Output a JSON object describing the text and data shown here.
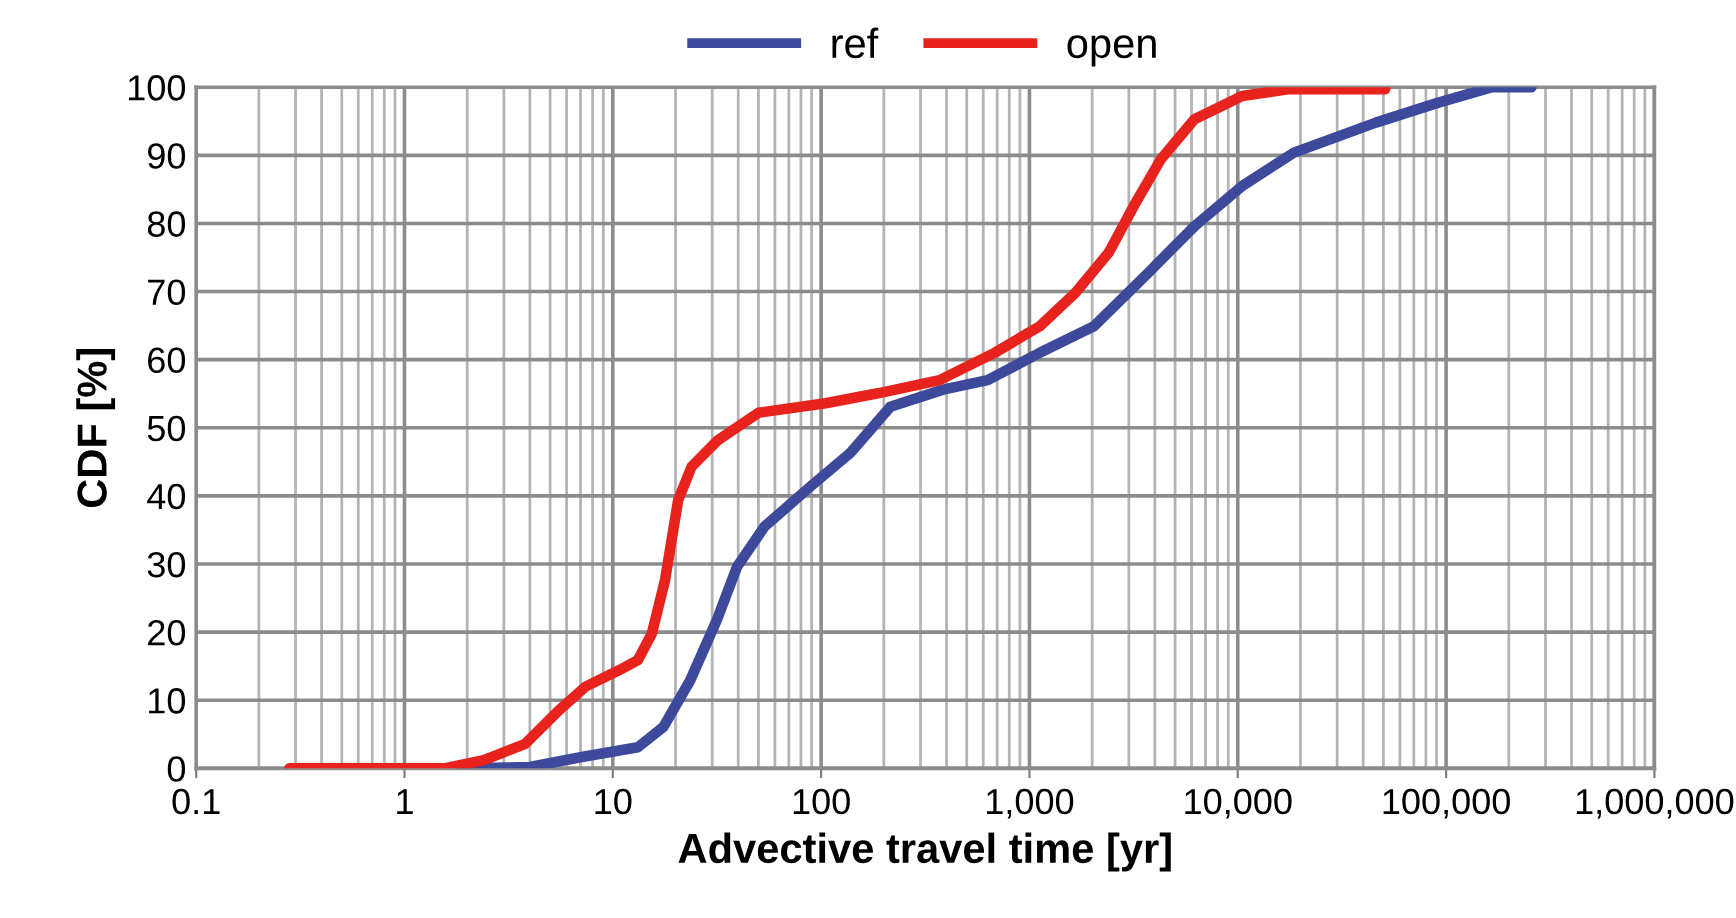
{
  "chart_data": {
    "type": "line",
    "xlabel": "Advective travel time [yr]",
    "ylabel": "CDF [%]",
    "log": "x",
    "xlim": [
      0.1,
      1000000
    ],
    "xticks": [
      0.1,
      1,
      10,
      100,
      {
        "value": 1000,
        "label": "1,000"
      },
      {
        "value": 10000,
        "label": "10,000"
      },
      {
        "value": 100000,
        "label": "100,000"
      },
      {
        "value": 1000000,
        "label": "1,000,000"
      }
    ],
    "ylim": [
      0,
      100
    ],
    "yticks": [
      0,
      10,
      20,
      30,
      40,
      50,
      60,
      70,
      80,
      90,
      100
    ],
    "grid": true,
    "legend": "top",
    "marker": "none",
    "line_style": "solid",
    "series": [
      {
        "name": "ref",
        "color": "#3d4a9c",
        "x": [
          1.9,
          4,
          7.2,
          13.2,
          17.5,
          23.5,
          31.6,
          39.5,
          53.5,
          89,
          138,
          215,
          385,
          630,
          1120,
          2040,
          3700,
          6200,
          10500,
          18600,
          46000,
          91000,
          166000,
          257000
        ],
        "values": [
          0,
          0.2,
          1.7,
          3.1,
          6.1,
          12.9,
          21.8,
          29.6,
          35.5,
          41.4,
          46.3,
          53.1,
          55.6,
          57,
          61,
          64.9,
          72.7,
          79.6,
          85.5,
          90.4,
          94.8,
          97.7,
          100,
          100
        ]
      },
      {
        "name": "open",
        "color": "#e8231e",
        "x": [
          0.28,
          1.55,
          2.4,
          3.8,
          5.5,
          7.4,
          10.7,
          13.2,
          15.4,
          17.8,
          20.6,
          23.9,
          32,
          50,
          105,
          190,
          370,
          680,
          1120,
          1660,
          2400,
          3160,
          4270,
          6200,
          10500,
          17400,
          51000
        ],
        "values": [
          0,
          0,
          1.2,
          3.6,
          8.5,
          12,
          14.4,
          15.9,
          19.8,
          27.6,
          39.4,
          44.3,
          48.2,
          52.2,
          53.6,
          55.1,
          57,
          61,
          64.9,
          69.8,
          75.7,
          82.5,
          89.4,
          95.3,
          98.7,
          99.7,
          99.7
        ]
      }
    ]
  }
}
